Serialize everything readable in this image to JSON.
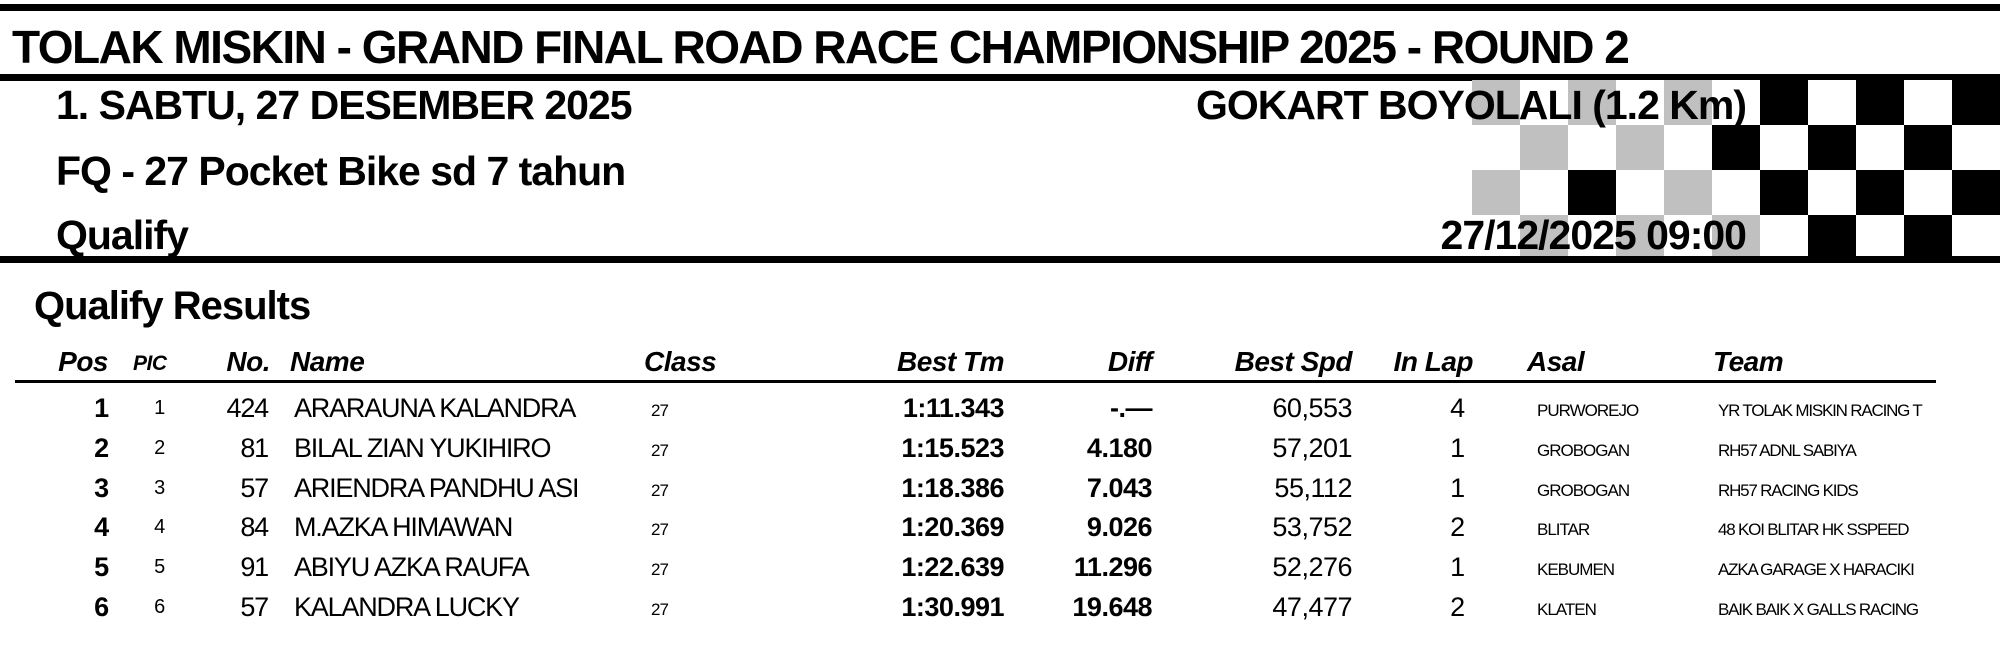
{
  "header": {
    "title": "TOLAK MISKIN - GRAND FINAL ROAD RACE CHAMPIONSHIP 2025  - ROUND 2",
    "date_line": "1. SABTU, 27 DESEMBER 2025",
    "venue": "GOKART BOYOLALI (1.2 Km)",
    "event": "FQ - 27  Pocket Bike sd 7 tahun",
    "session": "Qualify",
    "datetime": "27/12/2025  09:00"
  },
  "colors": {
    "checker_black": "#000000",
    "checker_gray": "#c0c0c0"
  },
  "results": {
    "title": "Qualify Results",
    "columns": {
      "pos": "Pos",
      "pic": "PIC",
      "no": "No.",
      "name": "Name",
      "class": "Class",
      "best_tm": "Best Tm",
      "diff": "Diff",
      "best_spd": "Best Spd",
      "in_lap": "In Lap",
      "asal": "Asal",
      "team": "Team"
    },
    "rows": [
      {
        "pos": "1",
        "pic": "1",
        "no": "424",
        "name": "ARARAUNA KALANDRA",
        "class": "27",
        "best_tm": "1:11.343",
        "diff": "-.—",
        "best_spd": "60,553",
        "in_lap": "4",
        "asal": "PURWOREJO",
        "team": "YR TOLAK MISKIN RACING T"
      },
      {
        "pos": "2",
        "pic": "2",
        "no": "81",
        "name": "BILAL ZIAN YUKIHIRO",
        "class": "27",
        "best_tm": "1:15.523",
        "diff": "4.180",
        "best_spd": "57,201",
        "in_lap": "1",
        "asal": "GROBOGAN",
        "team": "RH57 ADNL SABIYA"
      },
      {
        "pos": "3",
        "pic": "3",
        "no": "57",
        "name": "ARIENDRA PANDHU ASI",
        "class": "27",
        "best_tm": "1:18.386",
        "diff": "7.043",
        "best_spd": "55,112",
        "in_lap": "1",
        "asal": "GROBOGAN",
        "team": "RH57 RACING KIDS"
      },
      {
        "pos": "4",
        "pic": "4",
        "no": "84",
        "name": "M.AZKA HIMAWAN",
        "class": "27",
        "best_tm": "1:20.369",
        "diff": "9.026",
        "best_spd": "53,752",
        "in_lap": "2",
        "asal": "BLITAR",
        "team": "48 KOI BLITAR HK SSPEED"
      },
      {
        "pos": "5",
        "pic": "5",
        "no": "91",
        "name": "ABIYU AZKA RAUFA",
        "class": "27",
        "best_tm": "1:22.639",
        "diff": "11.296",
        "best_spd": "52,276",
        "in_lap": "1",
        "asal": "KEBUMEN",
        "team": "AZKA GARAGE X HARACIKI"
      },
      {
        "pos": "6",
        "pic": "6",
        "no": "57",
        "name": "KALANDRA LUCKY",
        "class": "27",
        "best_tm": "1:30.991",
        "diff": "19.648",
        "best_spd": "47,477",
        "in_lap": "2",
        "asal": "KLATEN",
        "team": "BAIK BAIK X GALLS RACING"
      }
    ]
  }
}
